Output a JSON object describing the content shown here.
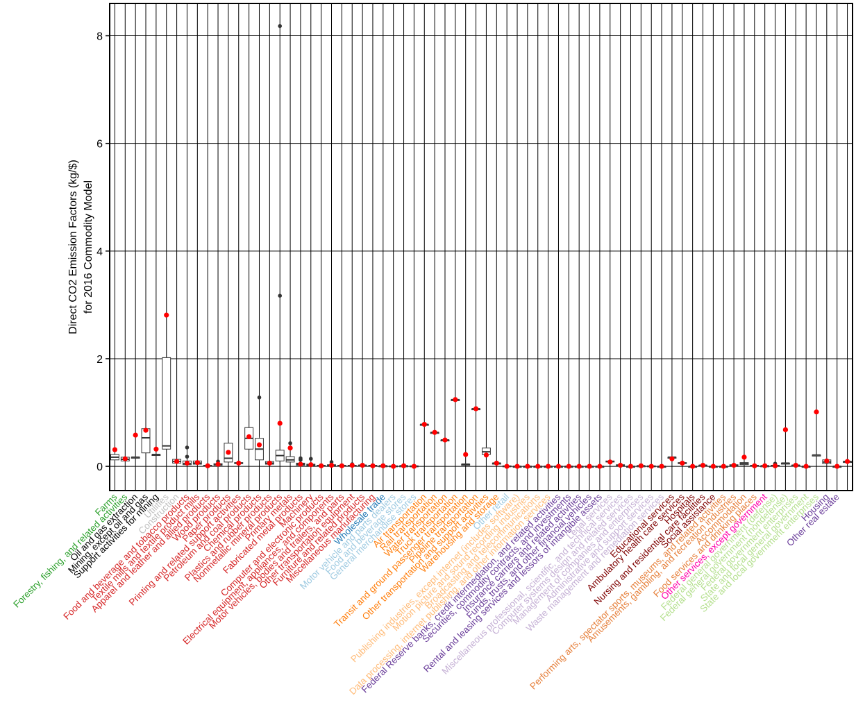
{
  "chart_data": {
    "type": "box",
    "title": "",
    "xlabel": "",
    "ylabel": "Direct CO2 Emission Factors (kg/$)",
    "ylabel2": "for 2016 Commodity Model",
    "ylim": [
      -0.45,
      8.6
    ],
    "yticks": [
      0,
      2,
      4,
      6,
      8
    ],
    "grid": true,
    "mean_marker_color": "#ff0000",
    "categories": [
      {
        "label": "Farms",
        "color": "#2ca02c",
        "q1": 0.12,
        "med": 0.17,
        "q3": 0.22,
        "wlo": 0.1,
        "whi": 0.24,
        "mean": 0.31,
        "out": []
      },
      {
        "label": "Forestry, fishing, and related activities",
        "color": "#2ca02c",
        "q1": 0.1,
        "med": 0.13,
        "q3": 0.17,
        "wlo": 0.09,
        "whi": 0.19,
        "mean": 0.14,
        "out": []
      },
      {
        "label": "Oil and gas extraction",
        "color": "#000000",
        "q1": 0.17,
        "med": 0.17,
        "q3": 0.17,
        "wlo": 0.17,
        "whi": 0.17,
        "mean": 0.58,
        "out": []
      },
      {
        "label": "Mining, except oil and gas",
        "color": "#000000",
        "q1": 0.25,
        "med": 0.53,
        "q3": 0.7,
        "wlo": 0.25,
        "whi": 0.7,
        "mean": 0.67,
        "out": []
      },
      {
        "label": "Support activities for mining",
        "color": "#000000",
        "q1": 0.22,
        "med": 0.22,
        "q3": 0.22,
        "wlo": 0.22,
        "whi": 0.22,
        "mean": 0.32,
        "out": []
      },
      {
        "label": "Utilities",
        "color": "#c0c0c0",
        "q1": 0.32,
        "med": 0.38,
        "q3": 2.02,
        "wlo": 0.3,
        "whi": 3.7,
        "mean": 2.81,
        "out": []
      },
      {
        "label": "Construction",
        "color": "#c0c0c0",
        "q1": 0.06,
        "med": 0.09,
        "q3": 0.13,
        "wlo": 0.05,
        "whi": 0.14,
        "mean": 0.09,
        "out": []
      },
      {
        "label": "Food and beverage and tobacco products",
        "color": "#d62728",
        "q1": 0.03,
        "med": 0.05,
        "q3": 0.1,
        "wlo": 0.02,
        "whi": 0.12,
        "mean": 0.06,
        "out": [
          0.18,
          0.35
        ]
      },
      {
        "label": "Textile mills and textile product mills",
        "color": "#d62728",
        "q1": 0.04,
        "med": 0.06,
        "q3": 0.1,
        "wlo": 0.03,
        "whi": 0.11,
        "mean": 0.07,
        "out": []
      },
      {
        "label": "Apparel and leather and allied products",
        "color": "#d62728",
        "q1": 0.01,
        "med": 0.01,
        "q3": 0.02,
        "wlo": 0.01,
        "whi": 0.02,
        "mean": 0.01,
        "out": []
      },
      {
        "label": "Wood products",
        "color": "#d62728",
        "q1": 0.02,
        "med": 0.03,
        "q3": 0.05,
        "wlo": 0.01,
        "whi": 0.06,
        "mean": 0.04,
        "out": [
          0.09
        ]
      },
      {
        "label": "Paper products",
        "color": "#d62728",
        "q1": 0.08,
        "med": 0.15,
        "q3": 0.43,
        "wlo": 0.05,
        "whi": 0.45,
        "mean": 0.26,
        "out": []
      },
      {
        "label": "Printing and related support activities",
        "color": "#d62728",
        "q1": 0.05,
        "med": 0.06,
        "q3": 0.07,
        "wlo": 0.05,
        "whi": 0.08,
        "mean": 0.06,
        "out": []
      },
      {
        "label": "Petroleum and coal products",
        "color": "#d62728",
        "q1": 0.32,
        "med": 0.52,
        "q3": 0.72,
        "wlo": 0.3,
        "whi": 0.95,
        "mean": 0.55,
        "out": []
      },
      {
        "label": "Chemical products",
        "color": "#d62728",
        "q1": 0.12,
        "med": 0.32,
        "q3": 0.52,
        "wlo": 0.1,
        "whi": 0.55,
        "mean": 0.4,
        "out": [
          1.28
        ]
      },
      {
        "label": "Plastics and rubber products",
        "color": "#d62728",
        "q1": 0.04,
        "med": 0.06,
        "q3": 0.09,
        "wlo": 0.03,
        "whi": 0.1,
        "mean": 0.06,
        "out": []
      },
      {
        "label": "Nonmetallic mineral products",
        "color": "#d62728",
        "q1": 0.1,
        "med": 0.2,
        "q3": 0.3,
        "wlo": 0.05,
        "whi": 0.45,
        "mean": 0.8,
        "out": [
          3.17,
          8.18
        ]
      },
      {
        "label": "Primary metals",
        "color": "#d62728",
        "q1": 0.08,
        "med": 0.12,
        "q3": 0.18,
        "wlo": 0.05,
        "whi": 0.2,
        "mean": 0.34,
        "out": [
          0.43
        ]
      },
      {
        "label": "Fabricated metal products",
        "color": "#d62728",
        "q1": 0.02,
        "med": 0.04,
        "q3": 0.06,
        "wlo": 0.02,
        "whi": 0.08,
        "mean": 0.04,
        "out": [
          0.12,
          0.15
        ]
      },
      {
        "label": "Machinery",
        "color": "#d62728",
        "q1": 0.01,
        "med": 0.02,
        "q3": 0.04,
        "wlo": 0.01,
        "whi": 0.05,
        "mean": 0.03,
        "out": [
          0.14
        ]
      },
      {
        "label": "Computer and electronic products",
        "color": "#d62728",
        "q1": 0.01,
        "med": 0.01,
        "q3": 0.02,
        "wlo": 0.01,
        "whi": 0.02,
        "mean": 0.01,
        "out": []
      },
      {
        "label": "Electrical equipment, appliances, and components",
        "color": "#d62728",
        "q1": 0.01,
        "med": 0.02,
        "q3": 0.03,
        "wlo": 0.01,
        "whi": 0.04,
        "mean": 0.02,
        "out": [
          0.08
        ]
      },
      {
        "label": "Motor vehicles, bodies and trailers, and parts",
        "color": "#d62728",
        "q1": 0.01,
        "med": 0.01,
        "q3": 0.02,
        "wlo": 0.01,
        "whi": 0.02,
        "mean": 0.01,
        "out": []
      },
      {
        "label": "Other transportation equipment",
        "color": "#d62728",
        "q1": 0.01,
        "med": 0.01,
        "q3": 0.02,
        "wlo": 0.01,
        "whi": 0.03,
        "mean": 0.02,
        "out": [
          0.04
        ]
      },
      {
        "label": "Furniture and related products",
        "color": "#d62728",
        "q1": 0.01,
        "med": 0.02,
        "q3": 0.02,
        "wlo": 0.01,
        "whi": 0.03,
        "mean": 0.02,
        "out": []
      },
      {
        "label": "Miscellaneous manufacturing",
        "color": "#d62728",
        "q1": 0.01,
        "med": 0.01,
        "q3": 0.02,
        "wlo": 0.01,
        "whi": 0.02,
        "mean": 0.01,
        "out": []
      },
      {
        "label": "Wholesale trade",
        "color": "#1f77b4",
        "q1": 0.01,
        "med": 0.01,
        "q3": 0.01,
        "wlo": 0.01,
        "whi": 0.01,
        "mean": 0.01,
        "out": []
      },
      {
        "label": "Motor vehicle and parts dealers",
        "color": "#9ecae1",
        "q1": 0.0,
        "med": 0.0,
        "q3": 0.01,
        "wlo": 0.0,
        "whi": 0.01,
        "mean": 0.0,
        "out": []
      },
      {
        "label": "Food and beverage stores",
        "color": "#9ecae1",
        "q1": 0.0,
        "med": 0.01,
        "q3": 0.01,
        "wlo": 0.0,
        "whi": 0.01,
        "mean": 0.01,
        "out": []
      },
      {
        "label": "General merchandise stores",
        "color": "#9ecae1",
        "q1": 0.0,
        "med": 0.0,
        "q3": 0.01,
        "wlo": 0.0,
        "whi": 0.01,
        "mean": 0.0,
        "out": []
      },
      {
        "label": "Air transportation",
        "color": "#ff7f0e",
        "q1": 0.78,
        "med": 0.78,
        "q3": 0.78,
        "wlo": 0.78,
        "whi": 0.78,
        "mean": 0.78,
        "out": []
      },
      {
        "label": "Rail transportation",
        "color": "#ff7f0e",
        "q1": 0.63,
        "med": 0.63,
        "q3": 0.63,
        "wlo": 0.63,
        "whi": 0.63,
        "mean": 0.63,
        "out": []
      },
      {
        "label": "Water transportation",
        "color": "#ff7f0e",
        "q1": 0.49,
        "med": 0.49,
        "q3": 0.49,
        "wlo": 0.49,
        "whi": 0.49,
        "mean": 0.49,
        "out": []
      },
      {
        "label": "Truck transportation",
        "color": "#ff7f0e",
        "q1": 1.24,
        "med": 1.24,
        "q3": 1.24,
        "wlo": 1.24,
        "whi": 1.24,
        "mean": 1.24,
        "out": []
      },
      {
        "label": "Transit and ground passenger transportation",
        "color": "#ff7f0e",
        "q1": 0.04,
        "med": 0.04,
        "q3": 0.04,
        "wlo": 0.04,
        "whi": 0.04,
        "mean": 0.22,
        "out": []
      },
      {
        "label": "Pipeline transportation",
        "color": "#ff7f0e",
        "q1": 1.07,
        "med": 1.07,
        "q3": 1.07,
        "wlo": 1.07,
        "whi": 1.07,
        "mean": 1.07,
        "out": []
      },
      {
        "label": "Other transportation and support activities",
        "color": "#ff7f0e",
        "q1": 0.22,
        "med": 0.27,
        "q3": 0.34,
        "wlo": 0.2,
        "whi": 0.36,
        "mean": 0.21,
        "out": []
      },
      {
        "label": "Warehousing and storage",
        "color": "#ff7f0e",
        "q1": 0.06,
        "med": 0.06,
        "q3": 0.06,
        "wlo": 0.06,
        "whi": 0.06,
        "mean": 0.06,
        "out": []
      },
      {
        "label": "Other retail",
        "color": "#9ecae1",
        "q1": 0.0,
        "med": 0.0,
        "q3": 0.01,
        "wlo": 0.0,
        "whi": 0.01,
        "mean": 0.0,
        "out": []
      },
      {
        "label": "Publishing industries, except internet (includes software)",
        "color": "#ffbb78",
        "q1": 0.0,
        "med": 0.0,
        "q3": 0.0,
        "wlo": 0.0,
        "whi": 0.0,
        "mean": 0.0,
        "out": []
      },
      {
        "label": "Motion picture and sound recording industries",
        "color": "#ffbb78",
        "q1": 0.0,
        "med": 0.0,
        "q3": 0.0,
        "wlo": 0.0,
        "whi": 0.0,
        "mean": 0.0,
        "out": []
      },
      {
        "label": "Broadcasting and telecommunications",
        "color": "#ffbb78",
        "q1": 0.0,
        "med": 0.0,
        "q3": 0.0,
        "wlo": 0.0,
        "whi": 0.0,
        "mean": 0.0,
        "out": []
      },
      {
        "label": "Data processing, internet publishing, and other information services",
        "color": "#ffbb78",
        "q1": 0.0,
        "med": 0.0,
        "q3": 0.0,
        "wlo": 0.0,
        "whi": 0.0,
        "mean": 0.0,
        "out": []
      },
      {
        "label": "Federal Reserve banks, credit intermediation, and related activities",
        "color": "#6a3d9a",
        "q1": 0.0,
        "med": 0.0,
        "q3": 0.0,
        "wlo": 0.0,
        "whi": 0.0,
        "mean": 0.0,
        "out": []
      },
      {
        "label": "Securities, commodity contracts, and investments",
        "color": "#6a3d9a",
        "q1": 0.0,
        "med": 0.0,
        "q3": 0.0,
        "wlo": 0.0,
        "whi": 0.0,
        "mean": 0.0,
        "out": []
      },
      {
        "label": "Insurance carriers and related activities",
        "color": "#6a3d9a",
        "q1": 0.0,
        "med": 0.0,
        "q3": 0.0,
        "wlo": 0.0,
        "whi": 0.0,
        "mean": 0.0,
        "out": []
      },
      {
        "label": "Funds, trusts, and other financial vehicles",
        "color": "#6a3d9a",
        "q1": 0.0,
        "med": 0.0,
        "q3": 0.0,
        "wlo": 0.0,
        "whi": 0.0,
        "mean": 0.0,
        "out": []
      },
      {
        "label": "Rental and leasing services and lessors of intangible assets",
        "color": "#6a3d9a",
        "q1": 0.0,
        "med": 0.0,
        "q3": 0.0,
        "wlo": 0.0,
        "whi": 0.0,
        "mean": 0.0,
        "out": []
      },
      {
        "label": "Legal services",
        "color": "#c5b0d5",
        "q1": 0.08,
        "med": 0.09,
        "q3": 0.1,
        "wlo": 0.08,
        "whi": 0.1,
        "mean": 0.08,
        "out": []
      },
      {
        "label": "Miscellaneous professional, scientific, and technical services",
        "color": "#c5b0d5",
        "q1": 0.01,
        "med": 0.02,
        "q3": 0.03,
        "wlo": 0.01,
        "whi": 0.03,
        "mean": 0.02,
        "out": []
      },
      {
        "label": "Computer systems design and related services",
        "color": "#c5b0d5",
        "q1": 0.0,
        "med": 0.0,
        "q3": 0.0,
        "wlo": 0.0,
        "whi": 0.0,
        "mean": 0.0,
        "out": []
      },
      {
        "label": "Management of companies and enterprises",
        "color": "#c5b0d5",
        "q1": 0.01,
        "med": 0.01,
        "q3": 0.01,
        "wlo": 0.01,
        "whi": 0.01,
        "mean": 0.01,
        "out": []
      },
      {
        "label": "Administrative and support services",
        "color": "#c5b0d5",
        "q1": 0.0,
        "med": 0.0,
        "q3": 0.01,
        "wlo": 0.0,
        "whi": 0.01,
        "mean": 0.0,
        "out": []
      },
      {
        "label": "Waste management and remediation services",
        "color": "#c5b0d5",
        "q1": 0.0,
        "med": 0.0,
        "q3": 0.0,
        "wlo": 0.0,
        "whi": 0.0,
        "mean": 0.0,
        "out": []
      },
      {
        "label": "Educational services",
        "color": "#7f0000",
        "q1": 0.17,
        "med": 0.17,
        "q3": 0.17,
        "wlo": 0.17,
        "whi": 0.17,
        "mean": 0.14,
        "out": []
      },
      {
        "label": "Ambulatory health care services",
        "color": "#7f0000",
        "q1": 0.05,
        "med": 0.06,
        "q3": 0.07,
        "wlo": 0.05,
        "whi": 0.07,
        "mean": 0.06,
        "out": []
      },
      {
        "label": "Hospitals",
        "color": "#7f0000",
        "q1": 0.0,
        "med": 0.0,
        "q3": 0.0,
        "wlo": 0.0,
        "whi": 0.0,
        "mean": 0.0,
        "out": []
      },
      {
        "label": "Nursing and residential care facilities",
        "color": "#7f0000",
        "q1": 0.02,
        "med": 0.02,
        "q3": 0.02,
        "wlo": 0.02,
        "whi": 0.02,
        "mean": 0.02,
        "out": []
      },
      {
        "label": "Social assistance",
        "color": "#7f0000",
        "q1": 0.0,
        "med": 0.0,
        "q3": 0.0,
        "wlo": 0.0,
        "whi": 0.0,
        "mean": 0.0,
        "out": []
      },
      {
        "label": "Performing arts, spectator sports, museums, and related activities",
        "color": "#e6803c",
        "q1": 0.0,
        "med": 0.0,
        "q3": 0.0,
        "wlo": 0.0,
        "whi": 0.0,
        "mean": 0.0,
        "out": []
      },
      {
        "label": "Amusements, gambling, and recreation industries",
        "color": "#e6803c",
        "q1": 0.01,
        "med": 0.02,
        "q3": 0.03,
        "wlo": 0.01,
        "whi": 0.03,
        "mean": 0.02,
        "out": []
      },
      {
        "label": "Accommodation",
        "color": "#e6803c",
        "q1": 0.03,
        "med": 0.05,
        "q3": 0.07,
        "wlo": 0.03,
        "whi": 0.08,
        "mean": 0.17,
        "out": []
      },
      {
        "label": "Food services and drinking places",
        "color": "#e6803c",
        "q1": 0.01,
        "med": 0.01,
        "q3": 0.02,
        "wlo": 0.01,
        "whi": 0.02,
        "mean": 0.01,
        "out": []
      },
      {
        "label": "Other services, except government",
        "color": "#ff00aa",
        "q1": 0.0,
        "med": 0.01,
        "q3": 0.01,
        "wlo": 0.0,
        "whi": 0.01,
        "mean": 0.01,
        "out": []
      },
      {
        "label": "Federal general government (defense)",
        "color": "#b5e08f",
        "q1": 0.0,
        "med": 0.01,
        "q3": 0.02,
        "wlo": 0.0,
        "whi": 0.03,
        "mean": 0.01,
        "out": [
          0.05
        ]
      },
      {
        "label": "Federal general government (nondefense)",
        "color": "#b5e08f",
        "q1": 0.06,
        "med": 0.06,
        "q3": 0.06,
        "wlo": 0.06,
        "whi": 0.06,
        "mean": 0.68,
        "out": []
      },
      {
        "label": "Federal government enterprises",
        "color": "#b5e08f",
        "q1": 0.02,
        "med": 0.02,
        "q3": 0.02,
        "wlo": 0.02,
        "whi": 0.02,
        "mean": 0.02,
        "out": []
      },
      {
        "label": "State and local general government",
        "color": "#b5e08f",
        "q1": 0.0,
        "med": 0.0,
        "q3": 0.0,
        "wlo": 0.0,
        "whi": 0.0,
        "mean": 0.0,
        "out": []
      },
      {
        "label": "State and local government enterprises",
        "color": "#b5e08f",
        "q1": 0.21,
        "med": 0.21,
        "q3": 0.21,
        "wlo": 0.21,
        "whi": 0.21,
        "mean": 1.01,
        "out": []
      },
      {
        "label": "Housing",
        "color": "#6a3d9a",
        "q1": 0.05,
        "med": 0.08,
        "q3": 0.12,
        "wlo": 0.04,
        "whi": 0.13,
        "mean": 0.1,
        "out": []
      },
      {
        "label": "Other real estate",
        "color": "#6a3d9a",
        "q1": 0.0,
        "med": 0.0,
        "q3": 0.0,
        "wlo": 0.0,
        "whi": 0.0,
        "mean": 0.0,
        "out": []
      },
      {
        "label": "",
        "color": "#6a3d9a",
        "q1": 0.09,
        "med": 0.09,
        "q3": 0.09,
        "wlo": 0.09,
        "whi": 0.09,
        "mean": 0.09,
        "out": []
      }
    ]
  }
}
